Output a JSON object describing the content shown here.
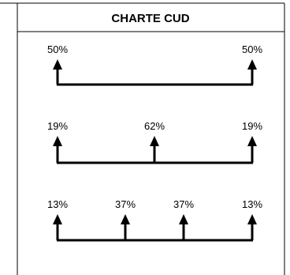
{
  "title": "CHARTE CUD",
  "rows": [
    {
      "items": [
        {
          "label": "50%"
        },
        {
          "label": "50%"
        }
      ]
    },
    {
      "items": [
        {
          "label": "19%"
        },
        {
          "label": "62%"
        },
        {
          "label": "19%"
        }
      ]
    },
    {
      "items": [
        {
          "label": "13%"
        },
        {
          "label": "37%"
        },
        {
          "label": "37%"
        },
        {
          "label": "13%"
        }
      ]
    }
  ]
}
